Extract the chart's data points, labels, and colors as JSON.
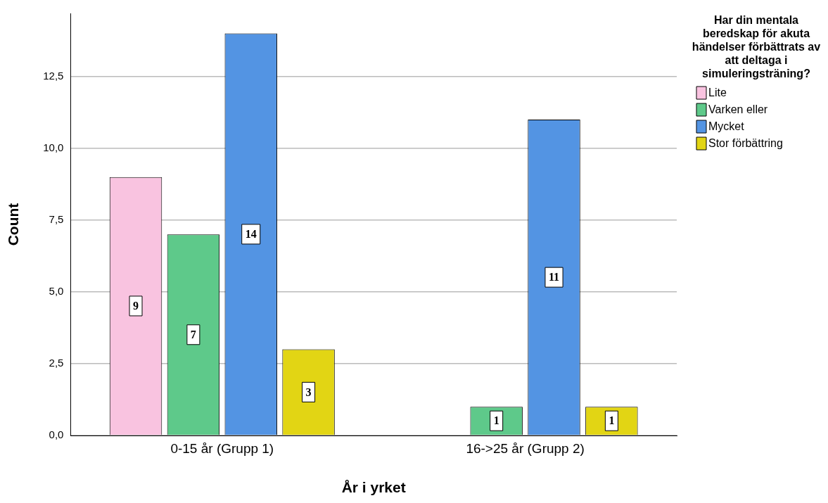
{
  "chart_data": {
    "type": "bar",
    "categories": [
      "0-15 år (Grupp 1)",
      "16->25 år (Grupp 2)"
    ],
    "series": [
      {
        "name": "Lite",
        "color": "#f9c3e0",
        "values": [
          9,
          null
        ]
      },
      {
        "name": "Varken eller",
        "color": "#5ec98a",
        "values": [
          7,
          1
        ]
      },
      {
        "name": "Mycket",
        "color": "#5394e3",
        "values": [
          14,
          11
        ]
      },
      {
        "name": "Stor förbättring",
        "color": "#e2d514",
        "values": [
          3,
          1
        ]
      }
    ],
    "xlabel": "År i yrket",
    "ylabel": "Count",
    "legend_title": "Har din mentala beredskap för akuta händelser förbättrats av att deltaga i simuleringsträning?",
    "legend": "right",
    "grid": "y",
    "data_labels": true,
    "ylim": [
      0,
      14.7
    ],
    "yticks": [
      {
        "value": 0,
        "label": "0,0"
      },
      {
        "value": 2.5,
        "label": "2,5"
      },
      {
        "value": 5,
        "label": "5,0"
      },
      {
        "value": 7.5,
        "label": "7,5"
      },
      {
        "value": 10,
        "label": "10,0"
      },
      {
        "value": 12.5,
        "label": "12,5"
      }
    ]
  }
}
